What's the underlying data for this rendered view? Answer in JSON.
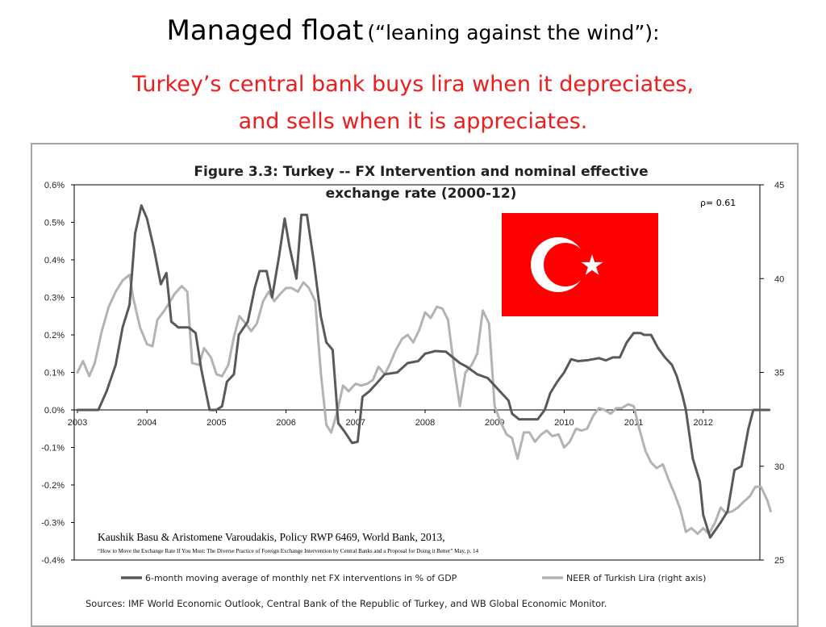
{
  "slide": {
    "title_main": "Managed float",
    "title_paren": "(“leaning against the wind”):",
    "subtitle_line1": "Turkey’s central bank buys lira when it depreciates,",
    "subtitle_line2": "and sells when it is appreciates.",
    "subtitle_color": "#ee1c1c"
  },
  "flag": {
    "name": "turkish-flag",
    "color": "#ff0000"
  },
  "chart_data": {
    "type": "line",
    "title_line1": "Figure 3.3: Turkey -- FX Intervention and nominal effective",
    "title_line2": "exchange rate (2000-12)",
    "annotation": "ρ= 0.61",
    "xlim": [
      2003,
      2013
    ],
    "x_ticks": [
      "2003",
      "2004",
      "2005",
      "2006",
      "2007",
      "2008",
      "2009",
      "2010",
      "2011",
      "2012"
    ],
    "y_left_lim": [
      -0.4,
      0.6
    ],
    "y_left_ticks": [
      "0.6%",
      "0.5%",
      "0.4%",
      "0.3%",
      "0.2%",
      "0.1%",
      "0.0%",
      "-0.1%",
      "-0.2%",
      "-0.3%",
      "-0.4%"
    ],
    "y_right_lim": [
      25,
      45
    ],
    "y_right_ticks": [
      "45",
      "40",
      "35",
      "30",
      "25"
    ],
    "series": [
      {
        "name": "6-month moving average of monthly net FX interventions in % of GDP",
        "axis": "left",
        "color": "#595959",
        "points": [
          [
            2003.0,
            0.0
          ],
          [
            2003.3,
            0.0
          ],
          [
            2003.42,
            0.05
          ],
          [
            2003.55,
            0.12
          ],
          [
            2003.65,
            0.22
          ],
          [
            2003.75,
            0.28
          ],
          [
            2003.83,
            0.47
          ],
          [
            2003.92,
            0.545
          ],
          [
            2004.0,
            0.51
          ],
          [
            2004.1,
            0.43
          ],
          [
            2004.2,
            0.335
          ],
          [
            2004.28,
            0.365
          ],
          [
            2004.35,
            0.235
          ],
          [
            2004.45,
            0.22
          ],
          [
            2004.6,
            0.22
          ],
          [
            2004.7,
            0.205
          ],
          [
            2004.78,
            0.11
          ],
          [
            2004.9,
            0.0
          ],
          [
            2005.0,
            0.0
          ],
          [
            2005.08,
            0.01
          ],
          [
            2005.15,
            0.075
          ],
          [
            2005.25,
            0.095
          ],
          [
            2005.32,
            0.2
          ],
          [
            2005.45,
            0.235
          ],
          [
            2005.55,
            0.325
          ],
          [
            2005.62,
            0.37
          ],
          [
            2005.72,
            0.37
          ],
          [
            2005.8,
            0.3
          ],
          [
            2005.9,
            0.41
          ],
          [
            2005.98,
            0.51
          ],
          [
            2006.05,
            0.435
          ],
          [
            2006.15,
            0.35
          ],
          [
            2006.22,
            0.52
          ],
          [
            2006.3,
            0.52
          ],
          [
            2006.4,
            0.395
          ],
          [
            2006.5,
            0.25
          ],
          [
            2006.58,
            0.18
          ],
          [
            2006.67,
            0.16
          ],
          [
            2006.75,
            -0.035
          ],
          [
            2006.85,
            -0.06
          ],
          [
            2006.95,
            -0.088
          ],
          [
            2007.03,
            -0.085
          ],
          [
            2007.1,
            0.035
          ],
          [
            2007.2,
            0.05
          ],
          [
            2007.3,
            0.07
          ],
          [
            2007.42,
            0.095
          ],
          [
            2007.6,
            0.1
          ],
          [
            2007.75,
            0.125
          ],
          [
            2007.9,
            0.13
          ],
          [
            2008.0,
            0.15
          ],
          [
            2008.15,
            0.157
          ],
          [
            2008.3,
            0.155
          ],
          [
            2008.4,
            0.14
          ],
          [
            2008.5,
            0.125
          ],
          [
            2008.6,
            0.115
          ],
          [
            2008.75,
            0.095
          ],
          [
            2008.9,
            0.085
          ],
          [
            2009.0,
            0.065
          ],
          [
            2009.1,
            0.045
          ],
          [
            2009.2,
            0.025
          ],
          [
            2009.25,
            -0.01
          ],
          [
            2009.35,
            -0.025
          ],
          [
            2009.5,
            -0.025
          ],
          [
            2009.62,
            -0.025
          ],
          [
            2009.72,
            0.0
          ],
          [
            2009.8,
            0.045
          ],
          [
            2009.9,
            0.075
          ],
          [
            2010.0,
            0.1
          ],
          [
            2010.1,
            0.135
          ],
          [
            2010.2,
            0.13
          ],
          [
            2010.35,
            0.133
          ],
          [
            2010.5,
            0.138
          ],
          [
            2010.6,
            0.132
          ],
          [
            2010.7,
            0.14
          ],
          [
            2010.8,
            0.14
          ],
          [
            2010.9,
            0.18
          ],
          [
            2011.0,
            0.205
          ],
          [
            2011.1,
            0.205
          ],
          [
            2011.15,
            0.2
          ],
          [
            2011.25,
            0.2
          ],
          [
            2011.35,
            0.165
          ],
          [
            2011.45,
            0.14
          ],
          [
            2011.55,
            0.12
          ],
          [
            2011.62,
            0.09
          ],
          [
            2011.7,
            0.04
          ],
          [
            2011.75,
            0.0
          ],
          [
            2011.85,
            -0.13
          ],
          [
            2011.95,
            -0.19
          ],
          [
            2012.0,
            -0.28
          ],
          [
            2012.05,
            -0.31
          ],
          [
            2012.1,
            -0.34
          ],
          [
            2012.25,
            -0.3
          ],
          [
            2012.35,
            -0.27
          ],
          [
            2012.45,
            -0.16
          ],
          [
            2012.55,
            -0.15
          ],
          [
            2012.65,
            -0.05
          ],
          [
            2012.72,
            0.0
          ],
          [
            2012.85,
            0.0
          ],
          [
            2012.95,
            0.0
          ]
        ]
      },
      {
        "name": "NEER of Turkish Lira (right axis)",
        "axis": "right",
        "color": "#b3b3b3",
        "points": [
          [
            2003.0,
            35.0
          ],
          [
            2003.08,
            35.6
          ],
          [
            2003.17,
            34.8
          ],
          [
            2003.25,
            35.5
          ],
          [
            2003.35,
            37.2
          ],
          [
            2003.45,
            38.5
          ],
          [
            2003.55,
            39.3
          ],
          [
            2003.65,
            39.9
          ],
          [
            2003.75,
            40.2
          ],
          [
            2003.8,
            39.0
          ],
          [
            2003.9,
            37.4
          ],
          [
            2004.0,
            36.5
          ],
          [
            2004.08,
            36.4
          ],
          [
            2004.15,
            37.8
          ],
          [
            2004.25,
            38.3
          ],
          [
            2004.32,
            38.7
          ],
          [
            2004.4,
            39.2
          ],
          [
            2004.5,
            39.6
          ],
          [
            2004.58,
            39.3
          ],
          [
            2004.65,
            35.5
          ],
          [
            2004.75,
            35.4
          ],
          [
            2004.82,
            36.3
          ],
          [
            2004.92,
            35.8
          ],
          [
            2005.0,
            34.9
          ],
          [
            2005.08,
            34.8
          ],
          [
            2005.17,
            35.4
          ],
          [
            2005.25,
            36.9
          ],
          [
            2005.33,
            38.0
          ],
          [
            2005.42,
            37.6
          ],
          [
            2005.5,
            37.2
          ],
          [
            2005.58,
            37.6
          ],
          [
            2005.67,
            38.8
          ],
          [
            2005.75,
            39.3
          ],
          [
            2005.83,
            38.8
          ],
          [
            2005.92,
            39.2
          ],
          [
            2006.0,
            39.5
          ],
          [
            2006.08,
            39.5
          ],
          [
            2006.17,
            39.3
          ],
          [
            2006.25,
            39.8
          ],
          [
            2006.33,
            39.5
          ],
          [
            2006.42,
            38.8
          ],
          [
            2006.5,
            35.0
          ],
          [
            2006.58,
            32.2
          ],
          [
            2006.65,
            31.8
          ],
          [
            2006.73,
            32.8
          ],
          [
            2006.82,
            34.3
          ],
          [
            2006.9,
            34.0
          ],
          [
            2007.0,
            34.4
          ],
          [
            2007.08,
            34.3
          ],
          [
            2007.17,
            34.4
          ],
          [
            2007.25,
            34.6
          ],
          [
            2007.33,
            35.3
          ],
          [
            2007.42,
            34.9
          ],
          [
            2007.5,
            35.5
          ],
          [
            2007.58,
            36.2
          ],
          [
            2007.67,
            36.8
          ],
          [
            2007.75,
            37.0
          ],
          [
            2007.83,
            36.6
          ],
          [
            2007.92,
            37.3
          ],
          [
            2008.0,
            38.2
          ],
          [
            2008.08,
            37.9
          ],
          [
            2008.17,
            38.5
          ],
          [
            2008.25,
            38.4
          ],
          [
            2008.33,
            37.8
          ],
          [
            2008.42,
            35.2
          ],
          [
            2008.5,
            33.2
          ],
          [
            2008.58,
            35.0
          ],
          [
            2008.67,
            35.4
          ],
          [
            2008.75,
            36.0
          ],
          [
            2008.83,
            38.3
          ],
          [
            2008.92,
            37.6
          ],
          [
            2009.0,
            33.2
          ],
          [
            2009.08,
            32.4
          ],
          [
            2009.17,
            31.7
          ],
          [
            2009.25,
            31.5
          ],
          [
            2009.33,
            30.4
          ],
          [
            2009.42,
            31.8
          ],
          [
            2009.5,
            31.8
          ],
          [
            2009.58,
            31.3
          ],
          [
            2009.67,
            31.7
          ],
          [
            2009.75,
            31.9
          ],
          [
            2009.83,
            31.6
          ],
          [
            2009.92,
            31.7
          ],
          [
            2010.0,
            31.0
          ],
          [
            2010.08,
            31.3
          ],
          [
            2010.17,
            32.0
          ],
          [
            2010.25,
            31.9
          ],
          [
            2010.33,
            32.0
          ],
          [
            2010.42,
            32.7
          ],
          [
            2010.5,
            33.1
          ],
          [
            2010.58,
            33.0
          ],
          [
            2010.67,
            32.8
          ],
          [
            2010.75,
            33.1
          ],
          [
            2010.83,
            33.1
          ],
          [
            2010.92,
            33.3
          ],
          [
            2011.0,
            33.2
          ],
          [
            2011.08,
            32.0
          ],
          [
            2011.17,
            30.8
          ],
          [
            2011.25,
            30.2
          ],
          [
            2011.33,
            29.9
          ],
          [
            2011.42,
            30.1
          ],
          [
            2011.5,
            29.3
          ],
          [
            2011.58,
            28.6
          ],
          [
            2011.67,
            27.7
          ],
          [
            2011.75,
            26.5
          ],
          [
            2011.83,
            26.7
          ],
          [
            2011.92,
            26.4
          ],
          [
            2012.0,
            26.7
          ],
          [
            2012.08,
            26.4
          ],
          [
            2012.17,
            27.0
          ],
          [
            2012.25,
            27.8
          ],
          [
            2012.33,
            27.5
          ],
          [
            2012.42,
            27.6
          ],
          [
            2012.5,
            27.8
          ],
          [
            2012.58,
            28.1
          ],
          [
            2012.67,
            28.4
          ],
          [
            2012.75,
            28.9
          ],
          [
            2012.83,
            28.9
          ],
          [
            2012.92,
            28.2
          ],
          [
            2012.97,
            27.6
          ]
        ]
      }
    ],
    "legend_position": "bottom"
  },
  "citation": {
    "line1": "Kaushik Basu & Aristomene Varoudakis, Policy RWP 6469, World Bank, 2013,",
    "line2": "“How to Move the Exchange Rate If You Must: The Diverse Practice of Foreign Exchange Intervention by Central Banks and a Proposal for Doing it Better” May, p. 14"
  },
  "sources": "Sources: IMF World Economic Outlook, Central Bank of the Republic of Turkey, and WB Global Economic Monitor."
}
